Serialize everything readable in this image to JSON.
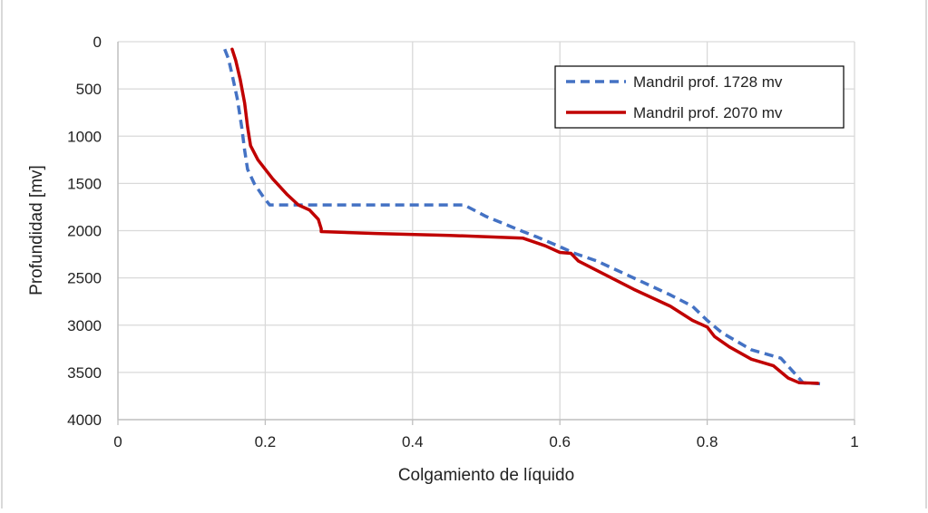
{
  "chart_data": {
    "type": "line",
    "xlabel": "Colgamiento de líquido",
    "ylabel": "Profundidad [mv]",
    "xlim": [
      0,
      1
    ],
    "ylim": [
      0,
      4000
    ],
    "y_inverted": true,
    "grid": true,
    "legend_position": "top-right",
    "x_ticks": [
      "0",
      "0.2",
      "0.4",
      "0.6",
      "0.8",
      "1"
    ],
    "y_ticks": [
      "0",
      "500",
      "1000",
      "1500",
      "2000",
      "2500",
      "3000",
      "3500",
      "4000"
    ],
    "series": [
      {
        "name": "Mandril prof. 1728 mv",
        "color": "#4472C4",
        "style": "dashed",
        "points": [
          [
            0.145,
            80
          ],
          [
            0.15,
            180
          ],
          [
            0.155,
            350
          ],
          [
            0.162,
            600
          ],
          [
            0.168,
            900
          ],
          [
            0.172,
            1150
          ],
          [
            0.176,
            1350
          ],
          [
            0.185,
            1500
          ],
          [
            0.198,
            1650
          ],
          [
            0.206,
            1728
          ],
          [
            0.3,
            1728
          ],
          [
            0.4,
            1728
          ],
          [
            0.47,
            1728
          ],
          [
            0.5,
            1850
          ],
          [
            0.55,
            2010
          ],
          [
            0.57,
            2070
          ],
          [
            0.6,
            2170
          ],
          [
            0.62,
            2240
          ],
          [
            0.65,
            2320
          ],
          [
            0.7,
            2500
          ],
          [
            0.75,
            2680
          ],
          [
            0.78,
            2800
          ],
          [
            0.8,
            2950
          ],
          [
            0.82,
            3080
          ],
          [
            0.86,
            3260
          ],
          [
            0.9,
            3350
          ],
          [
            0.92,
            3520
          ],
          [
            0.93,
            3610
          ],
          [
            0.955,
            3620
          ]
        ]
      },
      {
        "name": "Mandril prof. 2070 mv",
        "color": "#C00000",
        "style": "solid",
        "points": [
          [
            0.155,
            80
          ],
          [
            0.16,
            200
          ],
          [
            0.166,
            400
          ],
          [
            0.172,
            650
          ],
          [
            0.176,
            900
          ],
          [
            0.18,
            1100
          ],
          [
            0.19,
            1250
          ],
          [
            0.21,
            1450
          ],
          [
            0.23,
            1620
          ],
          [
            0.245,
            1728
          ],
          [
            0.26,
            1780
          ],
          [
            0.272,
            1880
          ],
          [
            0.276,
            1980
          ],
          [
            0.276,
            2010
          ],
          [
            0.35,
            2030
          ],
          [
            0.45,
            2050
          ],
          [
            0.55,
            2080
          ],
          [
            0.58,
            2160
          ],
          [
            0.6,
            2230
          ],
          [
            0.615,
            2240
          ],
          [
            0.625,
            2320
          ],
          [
            0.65,
            2420
          ],
          [
            0.7,
            2620
          ],
          [
            0.75,
            2800
          ],
          [
            0.78,
            2950
          ],
          [
            0.8,
            3020
          ],
          [
            0.81,
            3120
          ],
          [
            0.83,
            3230
          ],
          [
            0.86,
            3360
          ],
          [
            0.89,
            3430
          ],
          [
            0.91,
            3560
          ],
          [
            0.925,
            3610
          ],
          [
            0.95,
            3615
          ]
        ]
      }
    ]
  }
}
